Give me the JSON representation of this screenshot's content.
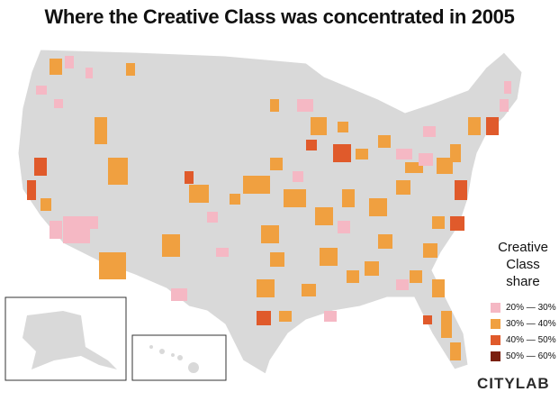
{
  "title": "Where the Creative Class was concentrated in 2005",
  "legend": {
    "title": "Creative Class share",
    "items": [
      {
        "label": "20% — 30%",
        "color": "#f5b8c4"
      },
      {
        "label": "30% — 40%",
        "color": "#f0a040"
      },
      {
        "label": "40% — 50%",
        "color": "#e05a2b"
      },
      {
        "label": "50% — 60%",
        "color": "#7a2010"
      }
    ]
  },
  "logo": "CITYLAB"
}
